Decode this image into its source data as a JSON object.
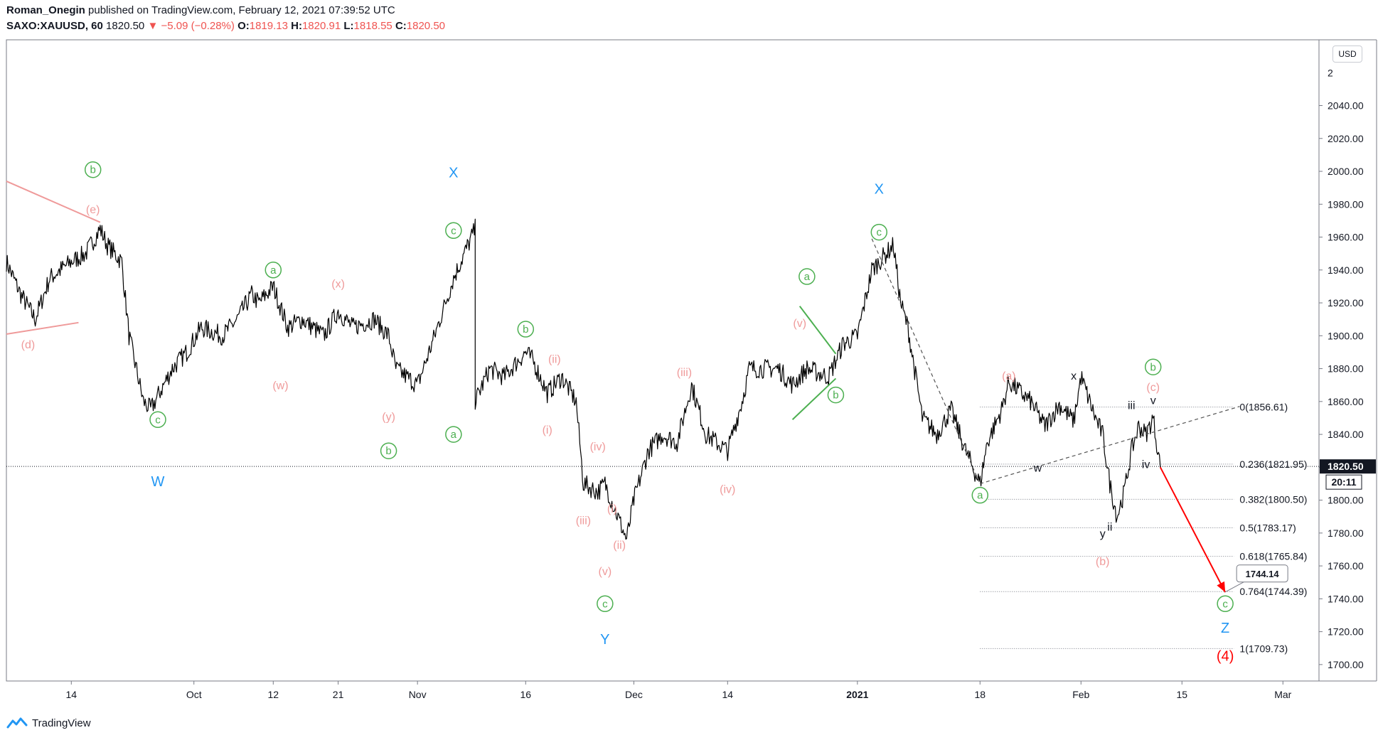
{
  "header": {
    "author": "Roman_Onegin",
    "published_text": "published on TradingView.com, February 12, 2021 07:39:52 UTC",
    "symbol": "SAXO:XAUUSD, 60",
    "last": "1820.50",
    "change": "−5.09 (−0.28%)",
    "o_label": "O:",
    "o_value": "1819.13",
    "h_label": "H:",
    "h_value": "1820.91",
    "l_label": "L:",
    "l_value": "1818.55",
    "c_label": "C:",
    "c_value": "1820.50"
  },
  "footer": {
    "brand": "TradingView"
  },
  "currency_button": "USD",
  "colors": {
    "green": "#4caf50",
    "pink": "#ef9a9a",
    "blue": "#2196f3",
    "red": "#ff0000",
    "price_tag": "#131722"
  },
  "chart_data": {
    "type": "line",
    "symbol": "SAXO:XAUUSD",
    "interval": "60",
    "ylim": [
      1690,
      2080
    ],
    "y_ticks": [
      1700,
      1720,
      1740,
      1760,
      1780,
      1800,
      1820,
      1840,
      1860,
      1880,
      1900,
      1920,
      1940,
      1960,
      1980,
      2000,
      2020,
      2040
    ],
    "y_tick_labels": [
      "1700.00",
      "1720.00",
      "1740.00",
      "1760.00",
      "1780.00",
      "1800.00",
      "1820.00",
      "1840.00",
      "1860.00",
      "1880.00",
      "1900.00",
      "1920.00",
      "1940.00",
      "1960.00",
      "1980.00",
      "2000.00",
      "2020.00",
      "2040.00"
    ],
    "y_top_partial_label": "2",
    "x_range": [
      "2020-09-05",
      "2021-03-06"
    ],
    "x_ticks": [
      {
        "date": "2020-09-14",
        "label": "14"
      },
      {
        "date": "2020-10-01",
        "label": "Oct"
      },
      {
        "date": "2020-10-12",
        "label": "12"
      },
      {
        "date": "2020-10-21",
        "label": "21"
      },
      {
        "date": "2020-11-01",
        "label": "Nov"
      },
      {
        "date": "2020-11-16",
        "label": "16"
      },
      {
        "date": "2020-12-01",
        "label": "Dec"
      },
      {
        "date": "2020-12-14",
        "label": "14"
      },
      {
        "date": "2021-01-01",
        "label": "2021"
      },
      {
        "date": "2021-01-18",
        "label": "18"
      },
      {
        "date": "2021-02-01",
        "label": "Feb"
      },
      {
        "date": "2021-02-15",
        "label": "15"
      },
      {
        "date": "2021-03-01",
        "label": "Mar"
      }
    ],
    "series": [
      {
        "x": [
          "2020-09-05",
          "2020-09-07",
          "2020-09-09",
          "2020-09-11",
          "2020-09-14",
          "2020-09-16",
          "2020-09-18",
          "2020-09-19",
          "2020-09-21",
          "2020-09-22",
          "2020-09-24",
          "2020-09-25",
          "2020-09-28",
          "2020-09-30",
          "2020-10-02",
          "2020-10-05",
          "2020-10-07",
          "2020-10-09",
          "2020-10-10",
          "2020-10-12",
          "2020-10-14",
          "2020-10-16",
          "2020-10-19",
          "2020-10-21",
          "2020-10-23",
          "2020-10-26",
          "2020-10-28",
          "2020-10-29",
          "2020-11-01",
          "2020-11-03",
          "2020-11-06",
          "2020-11-09",
          "2020-11-09",
          "2020-11-11",
          "2020-11-13",
          "2020-11-16",
          "2020-11-17",
          "2020-11-19",
          "2020-11-21",
          "2020-11-23",
          "2020-11-24",
          "2020-11-26",
          "2020-11-27",
          "2020-11-30",
          "2020-12-01",
          "2020-12-03",
          "2020-12-05",
          "2020-12-07",
          "2020-12-09",
          "2020-12-11",
          "2020-12-14",
          "2020-12-16",
          "2020-12-17",
          "2020-12-18",
          "2020-12-21",
          "2020-12-23",
          "2020-12-25",
          "2020-12-28",
          "2020-12-30",
          "2021-01-01",
          "2021-01-03",
          "2021-01-06",
          "2021-01-07",
          "2021-01-08",
          "2021-01-10",
          "2021-01-12",
          "2021-01-14",
          "2021-01-16",
          "2021-01-18",
          "2021-01-19",
          "2021-01-21",
          "2021-01-22",
          "2021-01-25",
          "2021-01-27",
          "2021-01-29",
          "2021-01-31",
          "2021-02-01",
          "2021-02-03",
          "2021-02-04",
          "2021-02-05",
          "2021-02-06",
          "2021-02-07",
          "2021-02-08",
          "2021-02-09",
          "2021-02-10",
          "2021-02-11",
          "2021-02-12"
        ],
        "y": [
          1945,
          1925,
          1910,
          1935,
          1945,
          1950,
          1965,
          1955,
          1945,
          1900,
          1860,
          1855,
          1880,
          1890,
          1905,
          1900,
          1910,
          1925,
          1920,
          1930,
          1905,
          1910,
          1900,
          1915,
          1905,
          1910,
          1900,
          1880,
          1870,
          1895,
          1935,
          1965,
          1860,
          1880,
          1875,
          1890,
          1885,
          1865,
          1875,
          1860,
          1810,
          1805,
          1810,
          1776,
          1800,
          1830,
          1840,
          1835,
          1870,
          1840,
          1830,
          1860,
          1880,
          1880,
          1880,
          1870,
          1880,
          1875,
          1895,
          1900,
          1940,
          1955,
          1920,
          1905,
          1850,
          1840,
          1855,
          1830,
          1810,
          1835,
          1855,
          1872,
          1860,
          1845,
          1858,
          1848,
          1875,
          1850,
          1840,
          1810,
          1790,
          1805,
          1830,
          1845,
          1840,
          1850,
          1820
        ]
      }
    ],
    "last_price": 1820.5,
    "last_price_label": "1820.50",
    "countdown": "20:11",
    "fibonacci": {
      "levels": [
        {
          "ratio": "0",
          "price": 1856.61,
          "label": "0(1856.61)"
        },
        {
          "ratio": "0.236",
          "price": 1821.95,
          "label": "0.236(1821.95)"
        },
        {
          "ratio": "0.382",
          "price": 1800.5,
          "label": "0.382(1800.50)"
        },
        {
          "ratio": "0.5",
          "price": 1783.17,
          "label": "0.5(1783.17)"
        },
        {
          "ratio": "0.618",
          "price": 1765.84,
          "label": "0.618(1765.84)"
        },
        {
          "ratio": "0.764",
          "price": 1744.39,
          "label": "0.764(1744.39)"
        },
        {
          "ratio": "1",
          "price": 1709.73,
          "label": "1(1709.73)"
        }
      ],
      "start_date": "2021-01-18",
      "label_date": "2021-02-23"
    },
    "target_callout": {
      "price": 1744.14,
      "label": "1744.14"
    },
    "projection_arrow": {
      "from": {
        "x": "2021-02-12",
        "y": 1820
      },
      "to": {
        "x": "2021-02-21",
        "y": 1744
      }
    },
    "wave_labels": [
      {
        "text": "b",
        "x": "2020-09-17",
        "y": 2001,
        "circled": true,
        "color": "green"
      },
      {
        "text": "(e)",
        "x": "2020-09-17",
        "y": 1977,
        "circled": false,
        "color": "pink"
      },
      {
        "text": "(d)",
        "x": "2020-09-08",
        "y": 1895,
        "circled": false,
        "color": "pink"
      },
      {
        "text": "c",
        "x": "2020-09-26",
        "y": 1849,
        "circled": true,
        "color": "green"
      },
      {
        "text": "W",
        "x": "2020-09-26",
        "y": 1811,
        "circled": false,
        "color": "blue"
      },
      {
        "text": "a",
        "x": "2020-10-12",
        "y": 1940,
        "circled": true,
        "color": "green"
      },
      {
        "text": "(w)",
        "x": "2020-10-13",
        "y": 1870,
        "circled": false,
        "color": "pink"
      },
      {
        "text": "(x)",
        "x": "2020-10-21",
        "y": 1932,
        "circled": false,
        "color": "pink"
      },
      {
        "text": "(y)",
        "x": "2020-10-28",
        "y": 1851,
        "circled": false,
        "color": "pink"
      },
      {
        "text": "b",
        "x": "2020-10-28",
        "y": 1830,
        "circled": true,
        "color": "green"
      },
      {
        "text": "X",
        "x": "2020-11-06",
        "y": 1999,
        "circled": false,
        "color": "blue"
      },
      {
        "text": "c",
        "x": "2020-11-06",
        "y": 1964,
        "circled": true,
        "color": "green"
      },
      {
        "text": "a",
        "x": "2020-11-06",
        "y": 1840,
        "circled": true,
        "color": "green"
      },
      {
        "text": "b",
        "x": "2020-11-16",
        "y": 1904,
        "circled": true,
        "color": "green"
      },
      {
        "text": "(ii)",
        "x": "2020-11-20",
        "y": 1886,
        "circled": false,
        "color": "pink"
      },
      {
        "text": "(i)",
        "x": "2020-11-19",
        "y": 1843,
        "circled": false,
        "color": "pink"
      },
      {
        "text": "(iv)",
        "x": "2020-11-26",
        "y": 1833,
        "circled": false,
        "color": "pink"
      },
      {
        "text": "(iii)",
        "x": "2020-11-24",
        "y": 1788,
        "circled": false,
        "color": "pink"
      },
      {
        "text": "(i)",
        "x": "2020-11-28",
        "y": 1795,
        "circled": false,
        "color": "pink"
      },
      {
        "text": "(ii)",
        "x": "2020-11-29",
        "y": 1773,
        "circled": false,
        "color": "pink"
      },
      {
        "text": "(v)",
        "x": "2020-11-27",
        "y": 1757,
        "circled": false,
        "color": "pink"
      },
      {
        "text": "c",
        "x": "2020-11-27",
        "y": 1737,
        "circled": true,
        "color": "green"
      },
      {
        "text": "Y",
        "x": "2020-11-27",
        "y": 1715,
        "circled": false,
        "color": "blue"
      },
      {
        "text": "(iii)",
        "x": "2020-12-08",
        "y": 1878,
        "circled": false,
        "color": "pink"
      },
      {
        "text": "(iv)",
        "x": "2020-12-14",
        "y": 1807,
        "circled": false,
        "color": "pink"
      },
      {
        "text": "a",
        "x": "2020-12-25",
        "y": 1936,
        "circled": true,
        "color": "green"
      },
      {
        "text": "(v)",
        "x": "2020-12-24",
        "y": 1908,
        "circled": false,
        "color": "pink"
      },
      {
        "text": "b",
        "x": "2020-12-29",
        "y": 1864,
        "circled": true,
        "color": "green"
      },
      {
        "text": "X",
        "x": "2021-01-04",
        "y": 1989,
        "circled": false,
        "color": "blue"
      },
      {
        "text": "c",
        "x": "2021-01-04",
        "y": 1963,
        "circled": true,
        "color": "green"
      },
      {
        "text": "a",
        "x": "2021-01-18",
        "y": 1803,
        "circled": true,
        "color": "green"
      },
      {
        "text": "(a)",
        "x": "2021-01-22",
        "y": 1876,
        "circled": false,
        "color": "pink"
      },
      {
        "text": "w",
        "x": "2021-01-26",
        "y": 1820,
        "circled": false,
        "color": "black"
      },
      {
        "text": "x",
        "x": "2021-01-31",
        "y": 1876,
        "circled": false,
        "color": "black"
      },
      {
        "text": "(b)",
        "x": "2021-02-04",
        "y": 1763,
        "circled": false,
        "color": "pink"
      },
      {
        "text": "y",
        "x": "2021-02-04",
        "y": 1780,
        "circled": false,
        "color": "black"
      },
      {
        "text": "ii",
        "x": "2021-02-05",
        "y": 1784,
        "circled": false,
        "color": "black"
      },
      {
        "text": "iii",
        "x": "2021-02-08",
        "y": 1858,
        "circled": false,
        "color": "black"
      },
      {
        "text": "b",
        "x": "2021-02-11",
        "y": 1881,
        "circled": true,
        "color": "green"
      },
      {
        "text": "(c)",
        "x": "2021-02-11",
        "y": 1869,
        "circled": false,
        "color": "pink"
      },
      {
        "text": "v",
        "x": "2021-02-11",
        "y": 1861,
        "circled": false,
        "color": "black"
      },
      {
        "text": "iv",
        "x": "2021-02-10",
        "y": 1822,
        "circled": false,
        "color": "black"
      },
      {
        "text": "c",
        "x": "2021-02-21",
        "y": 1737,
        "circled": true,
        "color": "green"
      },
      {
        "text": "Z",
        "x": "2021-02-21",
        "y": 1722,
        "circled": false,
        "color": "blue"
      },
      {
        "text": "(4)",
        "x": "2021-02-21",
        "y": 1705,
        "circled": false,
        "color": "red"
      }
    ],
    "trendlines": [
      {
        "x1": "2020-09-05",
        "y1": 1994,
        "x2": "2020-09-18",
        "y2": 1969,
        "color": "pink"
      },
      {
        "x1": "2020-09-05",
        "y1": 1901,
        "x2": "2020-09-15",
        "y2": 1908,
        "color": "pink"
      },
      {
        "x1": "2020-12-24",
        "y1": 1918,
        "x2": "2020-12-29",
        "y2": 1889,
        "color": "green"
      },
      {
        "x1": "2020-12-23",
        "y1": 1849,
        "x2": "2020-12-29",
        "y2": 1874,
        "color": "green"
      },
      {
        "x1": "2021-01-03",
        "y1": 1959,
        "x2": "2021-01-18",
        "y2": 1810,
        "color": "dark",
        "dashed": true
      },
      {
        "x1": "2021-01-18",
        "y1": 1810,
        "x2": "2021-02-23",
        "y2": 1857,
        "color": "dark",
        "dashed": true
      }
    ]
  }
}
